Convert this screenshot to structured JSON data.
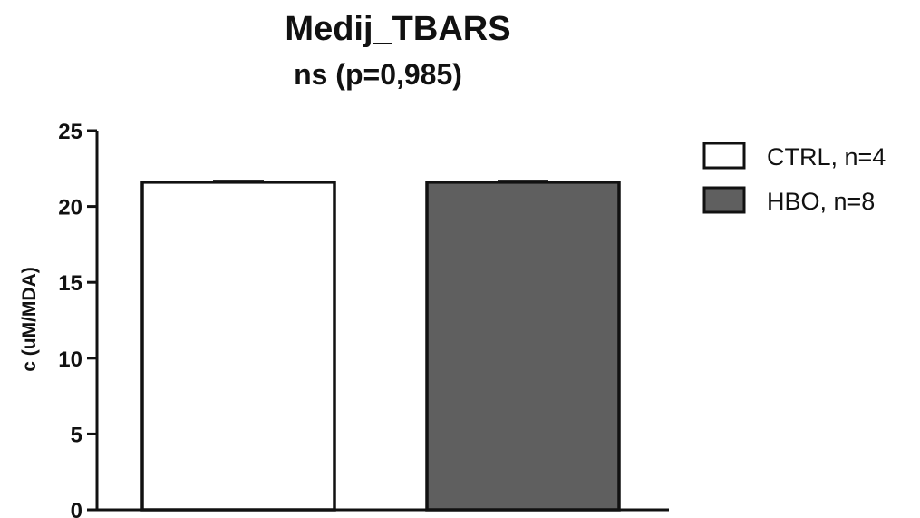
{
  "chart_data": {
    "type": "bar",
    "title": "Medij_TBARS",
    "subtitle": "ns (p=0,985)",
    "ylabel": "c (uM/MDA)",
    "xlabel": "",
    "ylim": [
      0,
      25
    ],
    "yticks": [
      "0",
      "5",
      "10",
      "15",
      "20",
      "25"
    ],
    "grid": false,
    "legend_position": "top-right",
    "series": [
      {
        "name": "CTRL, n=4",
        "value": 21.6,
        "error": 0.1,
        "color": "#ffffff"
      },
      {
        "name": "HBO, n=8",
        "value": 21.6,
        "error": 0.1,
        "color": "#5f5f5f"
      }
    ]
  }
}
